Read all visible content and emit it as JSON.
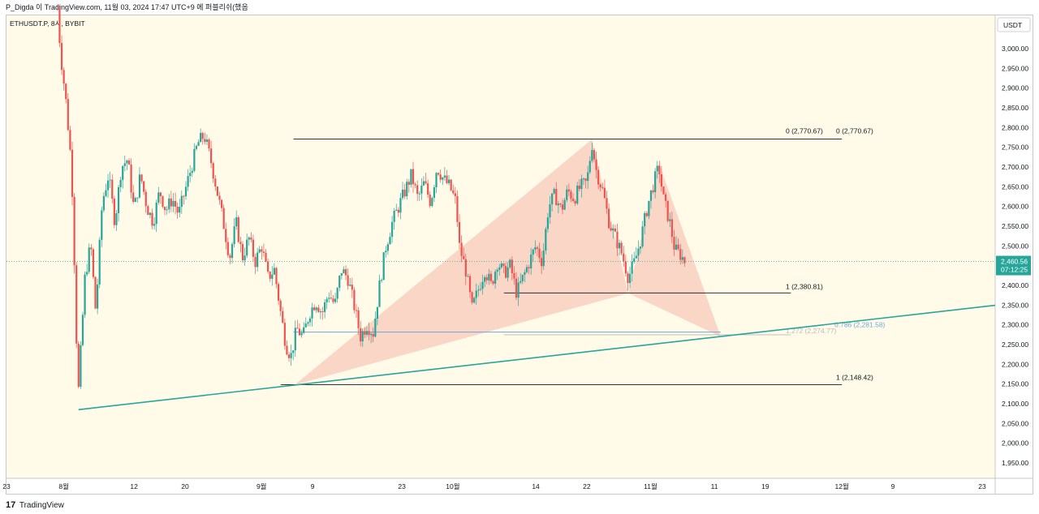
{
  "header": {
    "publish_line": "P_Digda 이 TradingView.com, 11월 03, 2024 17:47 UTC+9 에 퍼블리쉬(했음"
  },
  "footer": {
    "brand_mark": "17",
    "brand_name": "TradingView"
  },
  "colors": {
    "background": "#fffbe8",
    "candle_up": "#26a69a",
    "candle_down": "#ef5350",
    "trendline": "#26a69a",
    "pattern_fill": "#f8c9bb",
    "current_price_bg": "#26a69a",
    "fib_line": "#131722",
    "fib_projection": "#6fa8dc"
  },
  "chart_data": {
    "type": "candlestick",
    "title": "ETHUSDT.P, 8시, BYBIT",
    "currency_label": "USDT",
    "ylim": [
      1905,
      3105
    ],
    "y_ticks": [
      3000,
      2950,
      2900,
      2850,
      2800,
      2750,
      2700,
      2650,
      2600,
      2550,
      2500,
      2450,
      2400,
      2350,
      2300,
      2250,
      2200,
      2150,
      2100,
      2050,
      2000,
      1950
    ],
    "y_tick_labels": [
      "3,000.00",
      "2,950.00",
      "2,900.00",
      "2,850.00",
      "2,800.00",
      "2,750.00",
      "2,700.00",
      "2,650.00",
      "2,600.00",
      "2,550.00",
      "2,500.00",
      "2,450.00",
      "2,400.00",
      "2,350.00",
      "2,300.00",
      "2,250.00",
      "2,200.00",
      "2,150.00",
      "2,100.00",
      "2,050.00",
      "2,000.00",
      "1,950.00"
    ],
    "x_range_days": [
      0,
      157
    ],
    "x_ticks": [
      {
        "label": "23",
        "day": 8
      },
      {
        "label": "8월",
        "day": 17
      },
      {
        "label": "12",
        "day": 28
      },
      {
        "label": "20",
        "day": 36
      },
      {
        "label": "9월",
        "day": 48
      },
      {
        "label": "9",
        "day": 56
      },
      {
        "label": "23",
        "day": 70
      },
      {
        "label": "10월",
        "day": 78
      },
      {
        "label": "14",
        "day": 91
      },
      {
        "label": "22",
        "day": 99
      },
      {
        "label": "11월",
        "day": 109
      },
      {
        "label": "11",
        "day": 119
      },
      {
        "label": "19",
        "day": 127
      },
      {
        "label": "12월",
        "day": 139
      },
      {
        "label": "9",
        "day": 147
      },
      {
        "label": "23",
        "day": 161
      }
    ],
    "current_price": {
      "value": 2460.56,
      "label": "2,460.56",
      "countdown": "07:12:25"
    },
    "price_path": [
      {
        "day": 16,
        "price": 3100
      },
      {
        "day": 16.5,
        "price": 2985
      },
      {
        "day": 17.3,
        "price": 2870
      },
      {
        "day": 18.2,
        "price": 2700
      },
      {
        "day": 18.8,
        "price": 2380
      },
      {
        "day": 19.2,
        "price": 2108
      },
      {
        "day": 20.3,
        "price": 2420
      },
      {
        "day": 21.2,
        "price": 2505
      },
      {
        "day": 22,
        "price": 2330
      },
      {
        "day": 23,
        "price": 2610
      },
      {
        "day": 24,
        "price": 2680
      },
      {
        "day": 25,
        "price": 2560
      },
      {
        "day": 26,
        "price": 2700
      },
      {
        "day": 27,
        "price": 2720
      },
      {
        "day": 28,
        "price": 2590
      },
      {
        "day": 29,
        "price": 2680
      },
      {
        "day": 30,
        "price": 2600
      },
      {
        "day": 31,
        "price": 2560
      },
      {
        "day": 32,
        "price": 2640
      },
      {
        "day": 33,
        "price": 2590
      },
      {
        "day": 34,
        "price": 2620
      },
      {
        "day": 35,
        "price": 2580
      },
      {
        "day": 36,
        "price": 2640
      },
      {
        "day": 37,
        "price": 2700
      },
      {
        "day": 38,
        "price": 2760
      },
      {
        "day": 39,
        "price": 2780
      },
      {
        "day": 40,
        "price": 2720
      },
      {
        "day": 41,
        "price": 2640
      },
      {
        "day": 42,
        "price": 2560
      },
      {
        "day": 43,
        "price": 2470
      },
      {
        "day": 44,
        "price": 2560
      },
      {
        "day": 45,
        "price": 2470
      },
      {
        "day": 46,
        "price": 2520
      },
      {
        "day": 47,
        "price": 2460
      },
      {
        "day": 48,
        "price": 2500
      },
      {
        "day": 49,
        "price": 2420
      },
      {
        "day": 50,
        "price": 2440
      },
      {
        "day": 51,
        "price": 2330
      },
      {
        "day": 51.8,
        "price": 2250
      },
      {
        "day": 52.6,
        "price": 2220
      },
      {
        "day": 53.5,
        "price": 2290
      },
      {
        "day": 54.5,
        "price": 2270
      },
      {
        "day": 55.5,
        "price": 2330
      },
      {
        "day": 56.5,
        "price": 2360
      },
      {
        "day": 57.5,
        "price": 2330
      },
      {
        "day": 58.5,
        "price": 2380
      },
      {
        "day": 59.5,
        "price": 2350
      },
      {
        "day": 60.5,
        "price": 2440
      },
      {
        "day": 61.5,
        "price": 2420
      },
      {
        "day": 62.5,
        "price": 2350
      },
      {
        "day": 63.5,
        "price": 2270
      },
      {
        "day": 64.5,
        "price": 2300
      },
      {
        "day": 65.5,
        "price": 2280
      },
      {
        "day": 66.5,
        "price": 2400
      },
      {
        "day": 67.5,
        "price": 2500
      },
      {
        "day": 68.5,
        "price": 2560
      },
      {
        "day": 69.5,
        "price": 2600
      },
      {
        "day": 70.5,
        "price": 2640
      },
      {
        "day": 71.5,
        "price": 2680
      },
      {
        "day": 72.5,
        "price": 2620
      },
      {
        "day": 73.5,
        "price": 2660
      },
      {
        "day": 74.5,
        "price": 2610
      },
      {
        "day": 75.5,
        "price": 2700
      },
      {
        "day": 76.5,
        "price": 2670
      },
      {
        "day": 77.5,
        "price": 2650
      },
      {
        "day": 78.5,
        "price": 2610
      },
      {
        "day": 79,
        "price": 2500
      },
      {
        "day": 80,
        "price": 2440
      },
      {
        "day": 81,
        "price": 2340
      },
      {
        "day": 82,
        "price": 2390
      },
      {
        "day": 83,
        "price": 2440
      },
      {
        "day": 84,
        "price": 2400
      },
      {
        "day": 85,
        "price": 2460
      },
      {
        "day": 86,
        "price": 2430
      },
      {
        "day": 87,
        "price": 2450
      },
      {
        "day": 88,
        "price": 2380
      },
      {
        "day": 89,
        "price": 2420
      },
      {
        "day": 90,
        "price": 2460
      },
      {
        "day": 91,
        "price": 2500
      },
      {
        "day": 92,
        "price": 2460
      },
      {
        "day": 93,
        "price": 2600
      },
      {
        "day": 94,
        "price": 2630
      },
      {
        "day": 95,
        "price": 2590
      },
      {
        "day": 96,
        "price": 2640
      },
      {
        "day": 97,
        "price": 2620
      },
      {
        "day": 98,
        "price": 2650
      },
      {
        "day": 99,
        "price": 2660
      },
      {
        "day": 99.8,
        "price": 2760
      },
      {
        "day": 100.5,
        "price": 2690
      },
      {
        "day": 101.5,
        "price": 2640
      },
      {
        "day": 102.5,
        "price": 2560
      },
      {
        "day": 103.5,
        "price": 2520
      },
      {
        "day": 104.5,
        "price": 2480
      },
      {
        "day": 105.5,
        "price": 2420
      },
      {
        "day": 106.5,
        "price": 2460
      },
      {
        "day": 107.5,
        "price": 2520
      },
      {
        "day": 108.5,
        "price": 2600
      },
      {
        "day": 109.5,
        "price": 2660
      },
      {
        "day": 110.3,
        "price": 2700
      },
      {
        "day": 111,
        "price": 2620
      },
      {
        "day": 112,
        "price": 2560
      },
      {
        "day": 112.8,
        "price": 2490
      },
      {
        "day": 113.6,
        "price": 2480
      },
      {
        "day": 114.4,
        "price": 2460
      }
    ],
    "annotations": {
      "fib_upper": {
        "labels": [
          "0 (2,770.67)",
          "0 (2,770.67)"
        ],
        "price": 2770.67,
        "day_start": 53,
        "day_end": 139
      },
      "fib_right_low": {
        "label": "1 (2,380.81)",
        "price": 2380.81,
        "day_start": 86,
        "day_end": 131
      },
      "fib_left_low": {
        "label": "1 (2,148.42)",
        "price": 2148.42,
        "day_start": 51,
        "day_end": 139
      },
      "projection_a": {
        "label": "1.272 (2,274.77)",
        "price": 2274.77,
        "day_start": 86,
        "day_end": 131
      },
      "projection_b": {
        "label": "0.786 (2,281.58)",
        "price": 2281.58,
        "day_start": 53,
        "day_end": 120
      },
      "trendline": {
        "from": {
          "day": 19.3,
          "price": 2085
        },
        "to": {
          "day": 166,
          "price": 2355
        }
      },
      "pattern": [
        {
          "day": 53.2,
          "price": 2148
        },
        {
          "day": 99.8,
          "price": 2770
        },
        {
          "day": 105.5,
          "price": 2380
        },
        {
          "day": 110.3,
          "price": 2710
        },
        {
          "day": 120,
          "price": 2270
        }
      ]
    }
  }
}
